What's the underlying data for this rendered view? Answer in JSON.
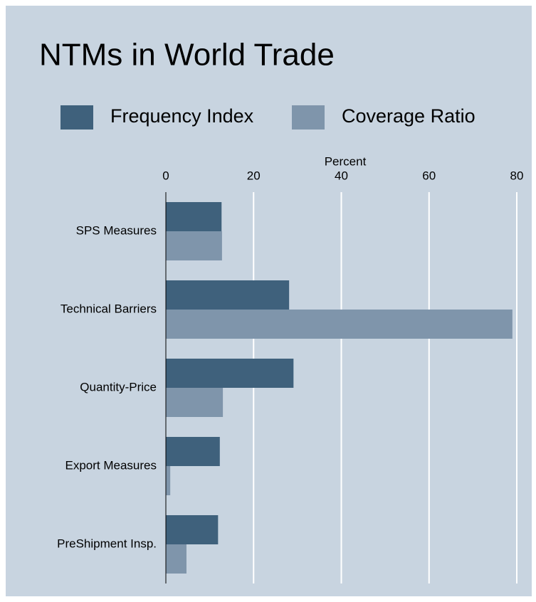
{
  "chart_data": {
    "type": "hbar",
    "title": "NTMs in World Trade",
    "x_label": "Percent",
    "categories": [
      "SPS Measures",
      "Technical Barriers",
      "Quantity-Price",
      "Export Measures",
      "PreShipment Insp."
    ],
    "series": [
      {
        "name": "Frequency Index",
        "color": "#3f617c",
        "values": [
          12.7,
          28.1,
          29.1,
          12.3,
          11.9
        ]
      },
      {
        "name": "Coverage Ratio",
        "color": "#7f95ab",
        "values": [
          12.8,
          79,
          13.0,
          1.0,
          4.7
        ]
      }
    ],
    "xlim": [
      0,
      80
    ],
    "xticks": [
      0,
      20,
      40,
      60,
      80
    ],
    "grid": true,
    "legend": "top"
  }
}
